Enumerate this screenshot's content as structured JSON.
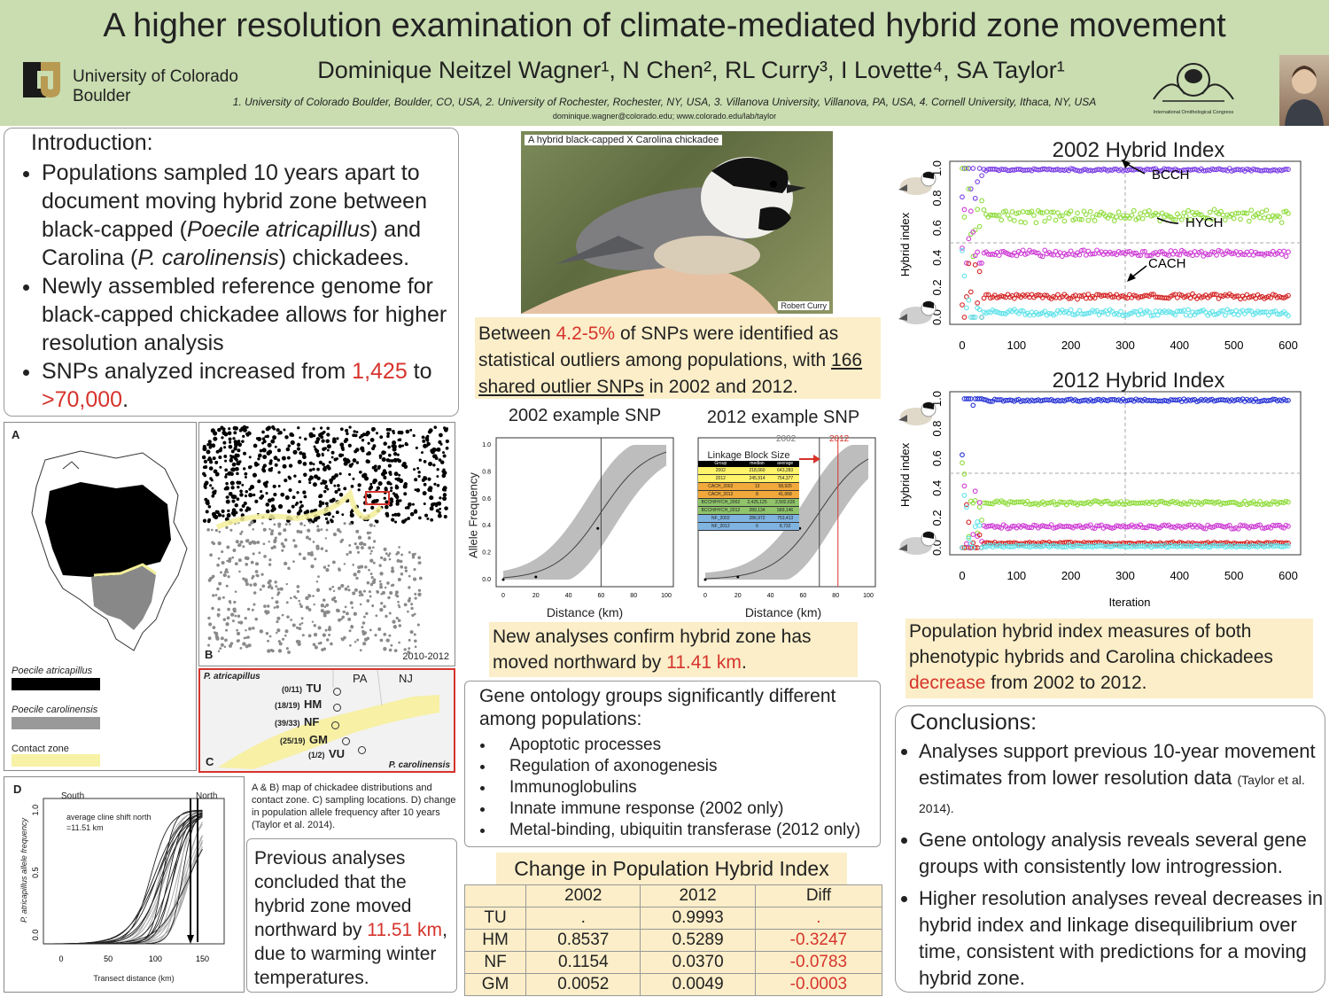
{
  "header": {
    "title": "A higher resolution examination of climate-mediated hybrid zone movement",
    "authors": "Dominique Neitzel Wagner¹, N Chen², RL Curry³, I Lovette⁴, SA Taylor¹",
    "affiliations": "1. University of Colorado Boulder, Boulder, CO, USA, 2. University of Rochester, Rochester, NY, USA, 3. Villanova University, Villanova, PA, USA, 4. Cornell University, Ithaca, NY, USA",
    "email": "dominique.wagner@colorado.edu; www.colorado.edu/lab/taylor",
    "univ_line1": "University of Colorado",
    "univ_line2": "Boulder",
    "ioc_text": "International Ornithological Congress"
  },
  "intro": {
    "heading": "Introduction:",
    "b1_a": "Populations sampled 10 years apart to document moving hybrid zone between black-capped (",
    "b1_i1": "Poecile atricapillus",
    "b1_b": ") and Carolina (",
    "b1_i2": "P. carolinensis",
    "b1_c": ") chickadees.",
    "b2": "Newly assembled reference genome for black-capped chickadee allows for higher resolution analysis",
    "b3_a": "SNPs analyzed increased from ",
    "b3_r1": "1,425",
    "b3_b": " to ",
    "b3_r2": ">70,000",
    "b3_c": "."
  },
  "maps": {
    "label_a": "A",
    "label_b": "B",
    "label_c": "C",
    "label_d": "D",
    "years": "2010-2012",
    "legend_1": "Poecile atricapillus",
    "legend_2": "Poecile carolinensis",
    "legend_3": "Contact zone",
    "c_north": "P. atricapillus",
    "c_south": "P. carolinensis",
    "c_pa": "PA",
    "c_nj": "NJ",
    "sites": [
      {
        "count": "(0/11)",
        "code": "TU"
      },
      {
        "count": "(18/19)",
        "code": "HM"
      },
      {
        "count": "(39/33)",
        "code": "NF"
      },
      {
        "count": "(25/19)",
        "code": "GM"
      },
      {
        "count": "(1/2)",
        "code": "VU"
      }
    ],
    "caption": "A & B) map of chickadee distributions and contact zone. C) sampling locations. D) change in population allele frequency after 10 years (Taylor et al. 2014)."
  },
  "cline_d": {
    "south": "South",
    "north": "North",
    "note1": "average cline shift north",
    "note2": "=11.51 km",
    "ylabel": "P. atricapillus allele frequency",
    "xlabel": "Transect distance (km)",
    "xticks": [
      "0",
      "50",
      "100",
      "150"
    ],
    "yticks": [
      "0.0",
      "0.5",
      "1.0"
    ]
  },
  "previous": {
    "text_a": "Previous analyses concluded that the hybrid zone moved northward by ",
    "red": "11.51 km",
    "text_b": ", due to warming winter temperatures."
  },
  "photo": {
    "caption": "A hybrid black-capped X Carolina chickadee",
    "credit": "Robert Curry"
  },
  "outliers": {
    "a": "Between ",
    "r": "4.2-5%",
    "b": " of SNPs were identified as statistical outliers among populations, with ",
    "u": "166 shared outlier SNPs",
    "c": " in 2002 and 2012."
  },
  "snp": {
    "title_2002": "2002 example SNP",
    "title_2012": "2012 example SNP",
    "ylabel": "Allele Frequency",
    "xlabel": "Distance (km)",
    "xticks": [
      "0",
      "20",
      "40",
      "60",
      "80",
      "100"
    ],
    "yticks": [
      "0.0",
      "0.2",
      "0.4",
      "0.6",
      "0.8",
      "1.0"
    ],
    "legend_2002": "2002",
    "legend_2012": "2012",
    "linkage_title": "Linkage Block Size",
    "linkage_cols": [
      "Group",
      "median",
      "average"
    ],
    "linkage_rows": [
      {
        "g": "2002",
        "m": "218,060",
        "a": "643,283",
        "c": "#fff36a"
      },
      {
        "g": "2012",
        "m": "245,914",
        "a": "754,377",
        "c": "#fff36a"
      },
      {
        "g": "CACH_2002",
        "m": "13",
        "a": "58,925",
        "c": "#f2a93b"
      },
      {
        "g": "CACH_2012",
        "m": "8",
        "a": "41,068",
        "c": "#f2a93b"
      },
      {
        "g": "BCCH/HYCH_2002",
        "m": "2,425,125",
        "a": "2,502,635",
        "c": "#8fc46a"
      },
      {
        "g": "BCCH/HYCH_2012",
        "m": "289,134",
        "a": "589,146",
        "c": "#8fc46a"
      },
      {
        "g": "NF_2002",
        "m": "286,972",
        "a": "753,413",
        "c": "#7fb3e0"
      },
      {
        "g": "NF_2012",
        "m": "6",
        "a": "8,732",
        "c": "#7fb3e0"
      }
    ]
  },
  "moved": {
    "a": "New analyses confirm hybrid zone has moved northward by ",
    "r": "11.41 km",
    "b": "."
  },
  "go": {
    "heading": "Gene ontology groups significantly different among populations:",
    "items": [
      "Apoptotic processes",
      "Regulation of axonogenesis",
      "Immunoglobulins",
      "Innate immune response (2002 only)",
      "Metal-binding, ubiquitin transferase (2012 only)"
    ]
  },
  "table": {
    "title": "Change in Population Hybrid Index",
    "cols": [
      "",
      "2002",
      "2012",
      "Diff"
    ],
    "rows": [
      {
        "pop": "TU",
        "y2002": ".",
        "y2012": "0.9993",
        "diff": "."
      },
      {
        "pop": "HM",
        "y2002": "0.8537",
        "y2012": "0.5289",
        "diff": "-0.3247"
      },
      {
        "pop": "NF",
        "y2002": "0.1154",
        "y2012": "0.0370",
        "diff": "-0.0783"
      },
      {
        "pop": "GM",
        "y2002": "0.0052",
        "y2012": "0.0049",
        "diff": "-0.0003"
      }
    ]
  },
  "chart_data": [
    {
      "type": "scatter",
      "title": "2002 Hybrid Index",
      "ylabel": "Hybrid index",
      "xlabel": "",
      "xlim": [
        0,
        600
      ],
      "ylim": [
        0,
        1
      ],
      "xticks": [
        "0",
        "100",
        "200",
        "300",
        "400",
        "500",
        "600"
      ],
      "yticks": [
        "0.0",
        "0.2",
        "0.4",
        "0.6",
        "0.8",
        "1.0"
      ],
      "annotations": [
        "BCCH",
        "HYCH",
        "CACH"
      ],
      "series": [
        {
          "color": "#7b3fe4",
          "level": 0.99,
          "spread": 0.005
        },
        {
          "color": "#8fdc3c",
          "level": 0.68,
          "spread": 0.025
        },
        {
          "color": "#cf3fd6",
          "level": 0.43,
          "spread": 0.012
        },
        {
          "color": "#d42424",
          "level": 0.14,
          "spread": 0.01
        },
        {
          "color": "#5fe3ea",
          "level": 0.03,
          "spread": 0.012
        }
      ]
    },
    {
      "type": "scatter",
      "title": "2012 Hybrid Index",
      "ylabel": "Hybrid index",
      "xlabel": "Iteration",
      "xlim": [
        0,
        600
      ],
      "ylim": [
        0,
        1
      ],
      "xticks": [
        "0",
        "100",
        "200",
        "300",
        "400",
        "500",
        "600"
      ],
      "yticks": [
        "0.0",
        "0.2",
        "0.4",
        "0.6",
        "0.8",
        "1.0"
      ],
      "annotations": [],
      "series": [
        {
          "color": "#2a35d6",
          "level": 0.99,
          "spread": 0.005
        },
        {
          "color": "#8fdc3c",
          "level": 0.3,
          "spread": 0.008
        },
        {
          "color": "#cf3fd6",
          "level": 0.14,
          "spread": 0.008
        },
        {
          "color": "#d42424",
          "level": 0.03,
          "spread": 0.004
        },
        {
          "color": "#5fe3ea",
          "level": 0.01,
          "spread": 0.004
        }
      ]
    }
  ],
  "hi_text": {
    "a": "Population hybrid index measures of both phenotypic hybrids and Carolina chickadees ",
    "r": "decrease",
    "b": " from 2002 to 2012."
  },
  "conclusions": {
    "heading": "Conclusions:",
    "c1_a": "Analyses support previous 10-year movement estimates from lower resolution data ",
    "c1_cite": "(Taylor et al. 2014).",
    "c2": "Gene ontology analysis reveals several gene groups with consistently low introgression.",
    "c3": "Higher resolution analyses reveal decreases in hybrid index and linkage disequilibrium over time, consistent with predictions for a moving hybrid zone."
  },
  "colors": {
    "header_bg": "#c9ddb0",
    "highlight_bg": "#fbeec8",
    "accent_red": "#d6342c"
  }
}
